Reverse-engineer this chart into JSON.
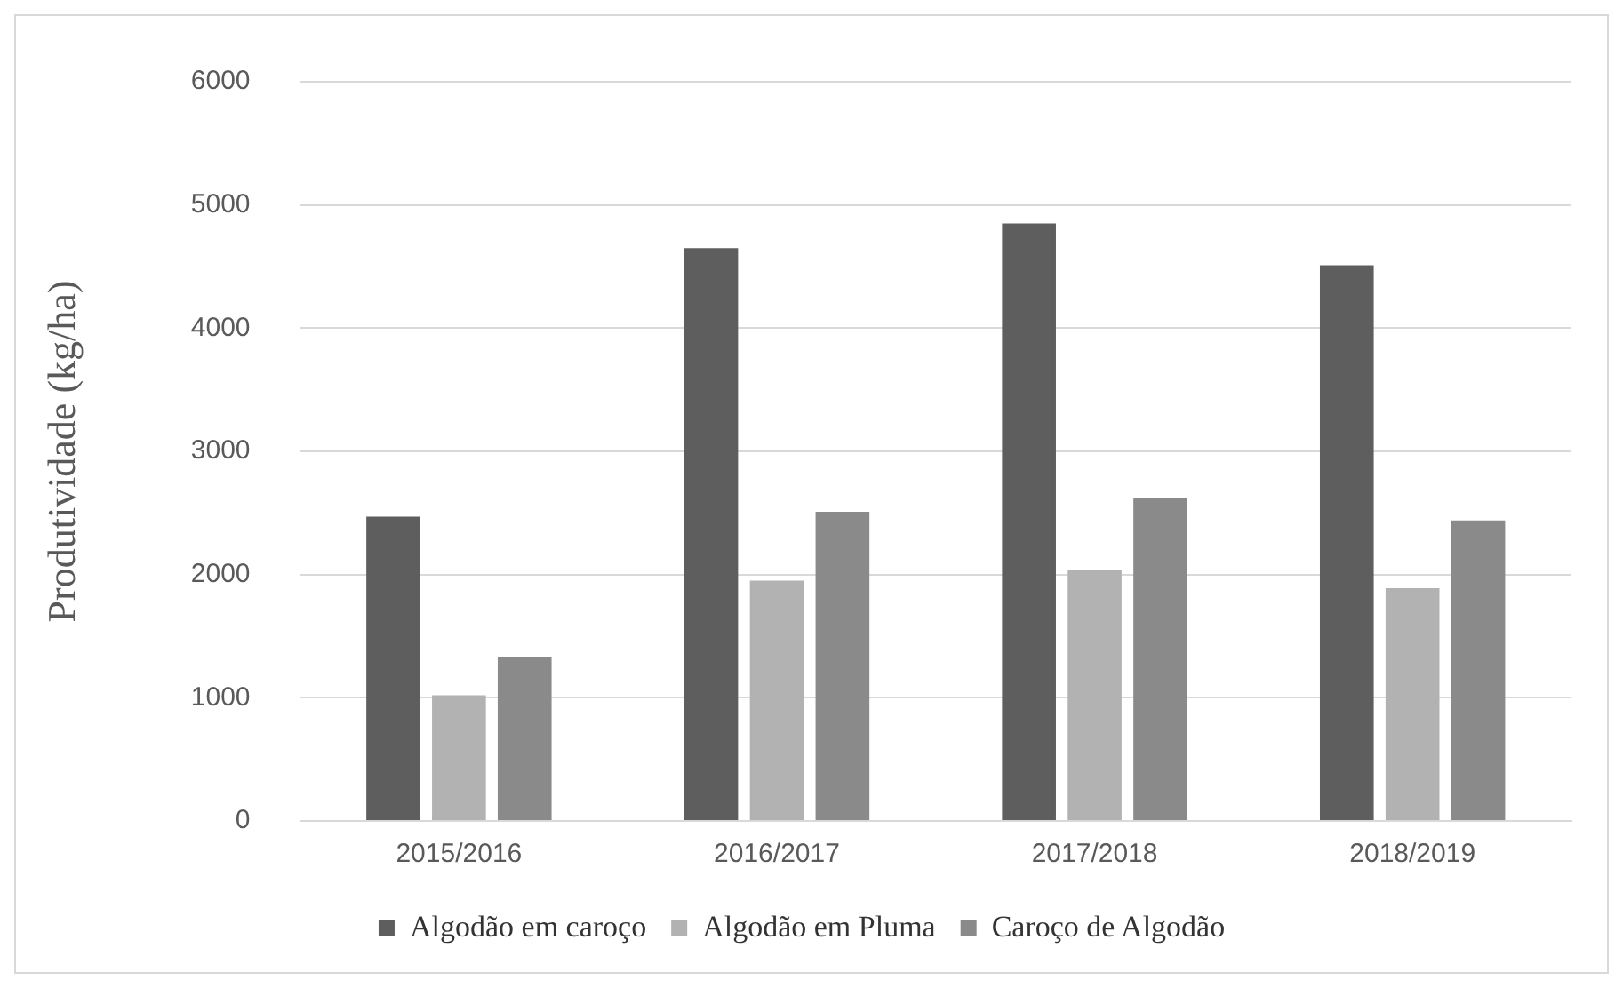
{
  "chart_data": {
    "type": "bar",
    "ylabel": "Produtividade (kg/ha)",
    "categories": [
      "2015/2016",
      "2016/2017",
      "2017/2018",
      "2018/2019"
    ],
    "series": [
      {
        "name": "Algodão em caroço",
        "color": "#5e5e5e",
        "values": [
          2470,
          4650,
          4850,
          4510
        ]
      },
      {
        "name": "Algodão em Pluma",
        "color": "#b2b2b2",
        "values": [
          1020,
          1950,
          2040,
          1890
        ]
      },
      {
        "name": "Caroço de Algodão",
        "color": "#8a8a8a",
        "values": [
          1330,
          2510,
          2620,
          2440
        ]
      }
    ],
    "ylim": [
      0,
      6000
    ],
    "yticks": [
      0,
      1000,
      2000,
      3000,
      4000,
      5000,
      6000
    ],
    "grid": "y",
    "legend": "bottom"
  }
}
